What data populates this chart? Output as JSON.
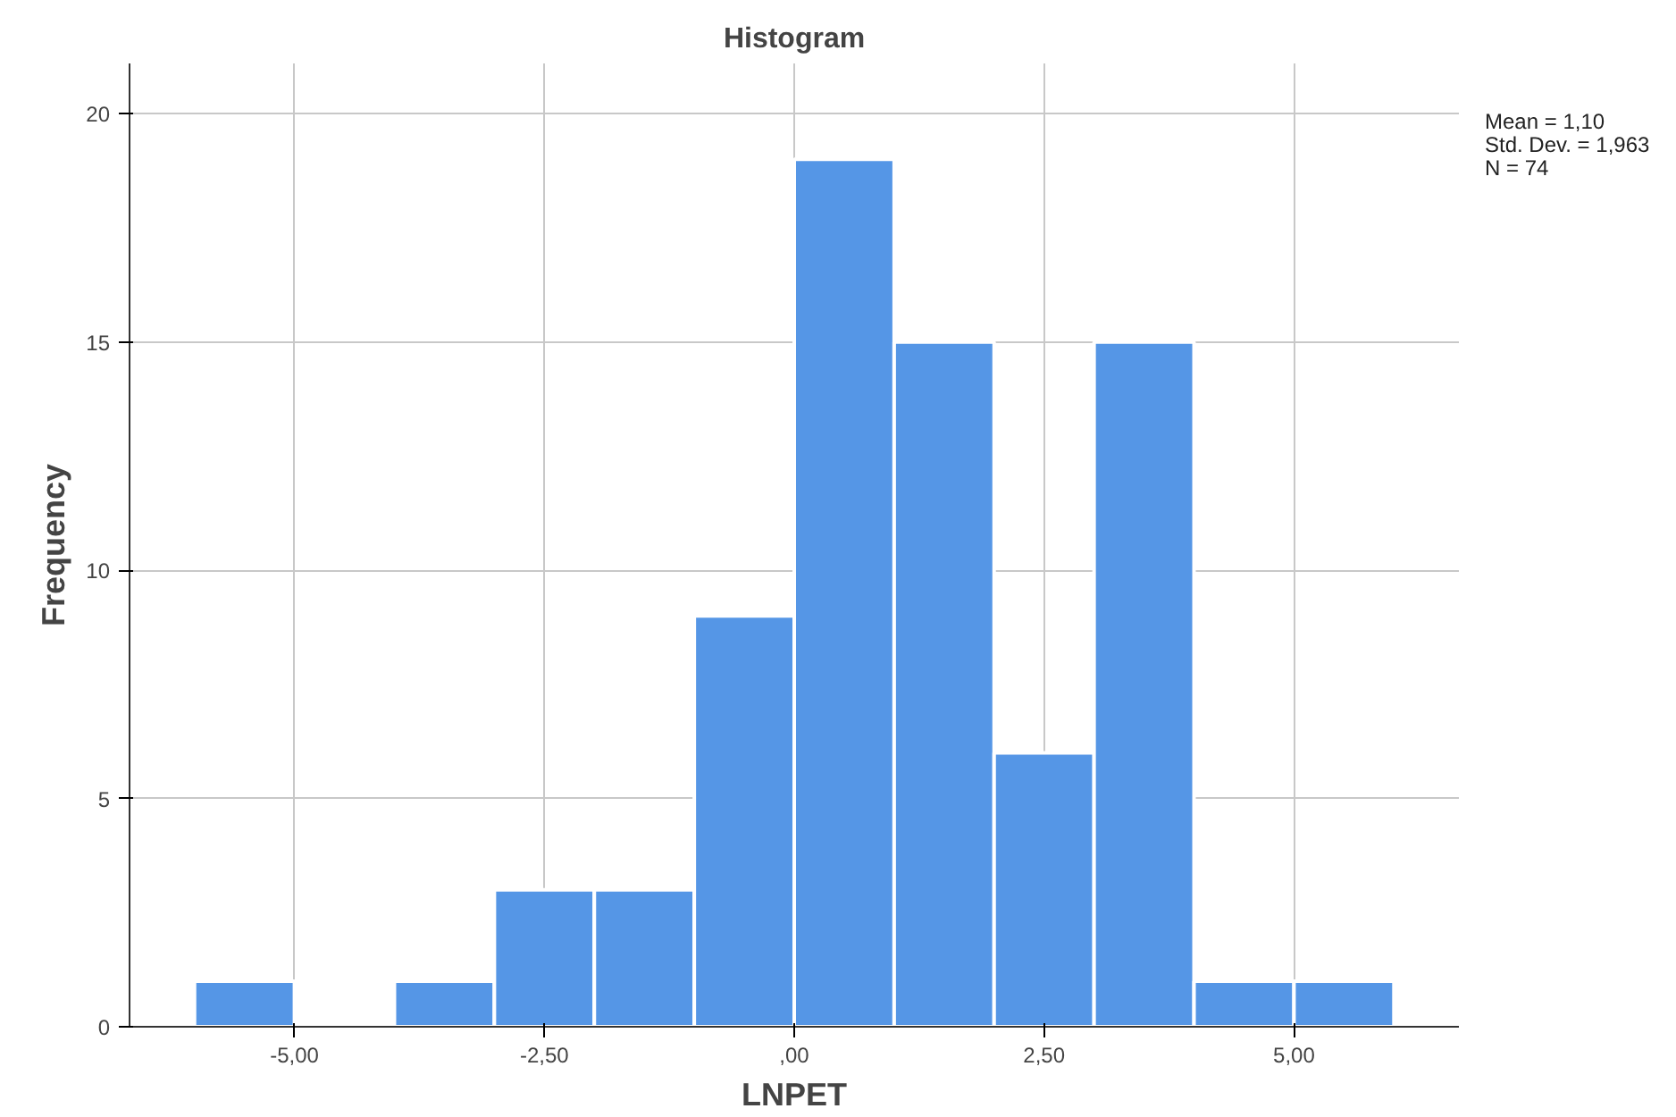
{
  "chart_data": {
    "type": "histogram",
    "title": "Histogram",
    "xlabel": "LNPET",
    "ylabel": "Frequency",
    "bins": [
      -6,
      -5,
      -4,
      -3,
      -2,
      -1,
      0,
      1,
      2,
      3,
      4,
      5,
      6
    ],
    "values": [
      1,
      0,
      1,
      3,
      3,
      9,
      19,
      15,
      6,
      15,
      1,
      1
    ],
    "color": "#5596e6",
    "xlim": [
      -6.65,
      6.65
    ],
    "ylim": [
      0,
      21.1
    ],
    "xticks": [
      {
        "value": -5,
        "label": "-5,00"
      },
      {
        "value": -2.5,
        "label": "-2,50"
      },
      {
        "value": 0,
        "label": ",00"
      },
      {
        "value": 2.5,
        "label": "2,50"
      },
      {
        "value": 5,
        "label": "5,00"
      }
    ],
    "yticks": [
      0,
      5,
      10,
      15,
      20
    ],
    "grid": true,
    "annotations": [
      "Mean = 1,10",
      "Std. Dev. = 1,963",
      "N = 74"
    ]
  }
}
